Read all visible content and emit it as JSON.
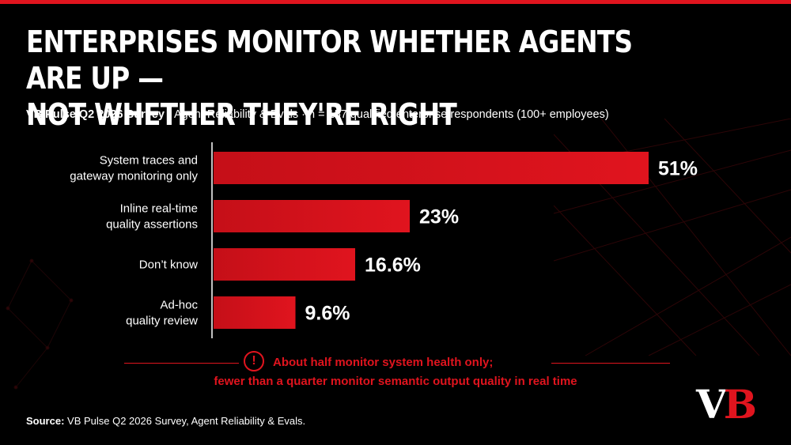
{
  "header": {
    "title_line1": "Enterprises monitor whether agents are up —",
    "title_line2": "not whether they're right",
    "subtitle_strong": "VB Pulse Q2 2026 Survey",
    "subtitle_rest": " · Agent Reliability & Evals · n = 157 qualified enterprise respondents (100+ employees)"
  },
  "chart_data": {
    "type": "bar",
    "orientation": "horizontal",
    "categories": [
      [
        "System traces and",
        "gateway monitoring only"
      ],
      [
        "Inline real-time",
        "quality assertions"
      ],
      [
        "Don’t know"
      ],
      [
        "Ad-hoc",
        "quality review"
      ]
    ],
    "values": [
      51,
      23,
      16.6,
      9.6
    ],
    "value_labels": [
      "51%",
      "23%",
      "16.6%",
      "9.6%"
    ],
    "unit": "%",
    "xlim": [
      0,
      51
    ],
    "grid": false,
    "legend": "none",
    "bar_color": "#e0141e"
  },
  "callout": {
    "icon": "alert-circle-icon",
    "symbol": "!",
    "line1": "About half monitor system health only;",
    "line2": "fewer than a quarter monitor semantic output quality in real time"
  },
  "footer": {
    "source_label": "Source:",
    "source_text": " VB Pulse Q2 2026 Survey, Agent Reliability & Evals.",
    "logo_v": "V",
    "logo_b": "B"
  },
  "colors": {
    "accent": "#e0141e",
    "background": "#000000",
    "text": "#ffffff"
  }
}
